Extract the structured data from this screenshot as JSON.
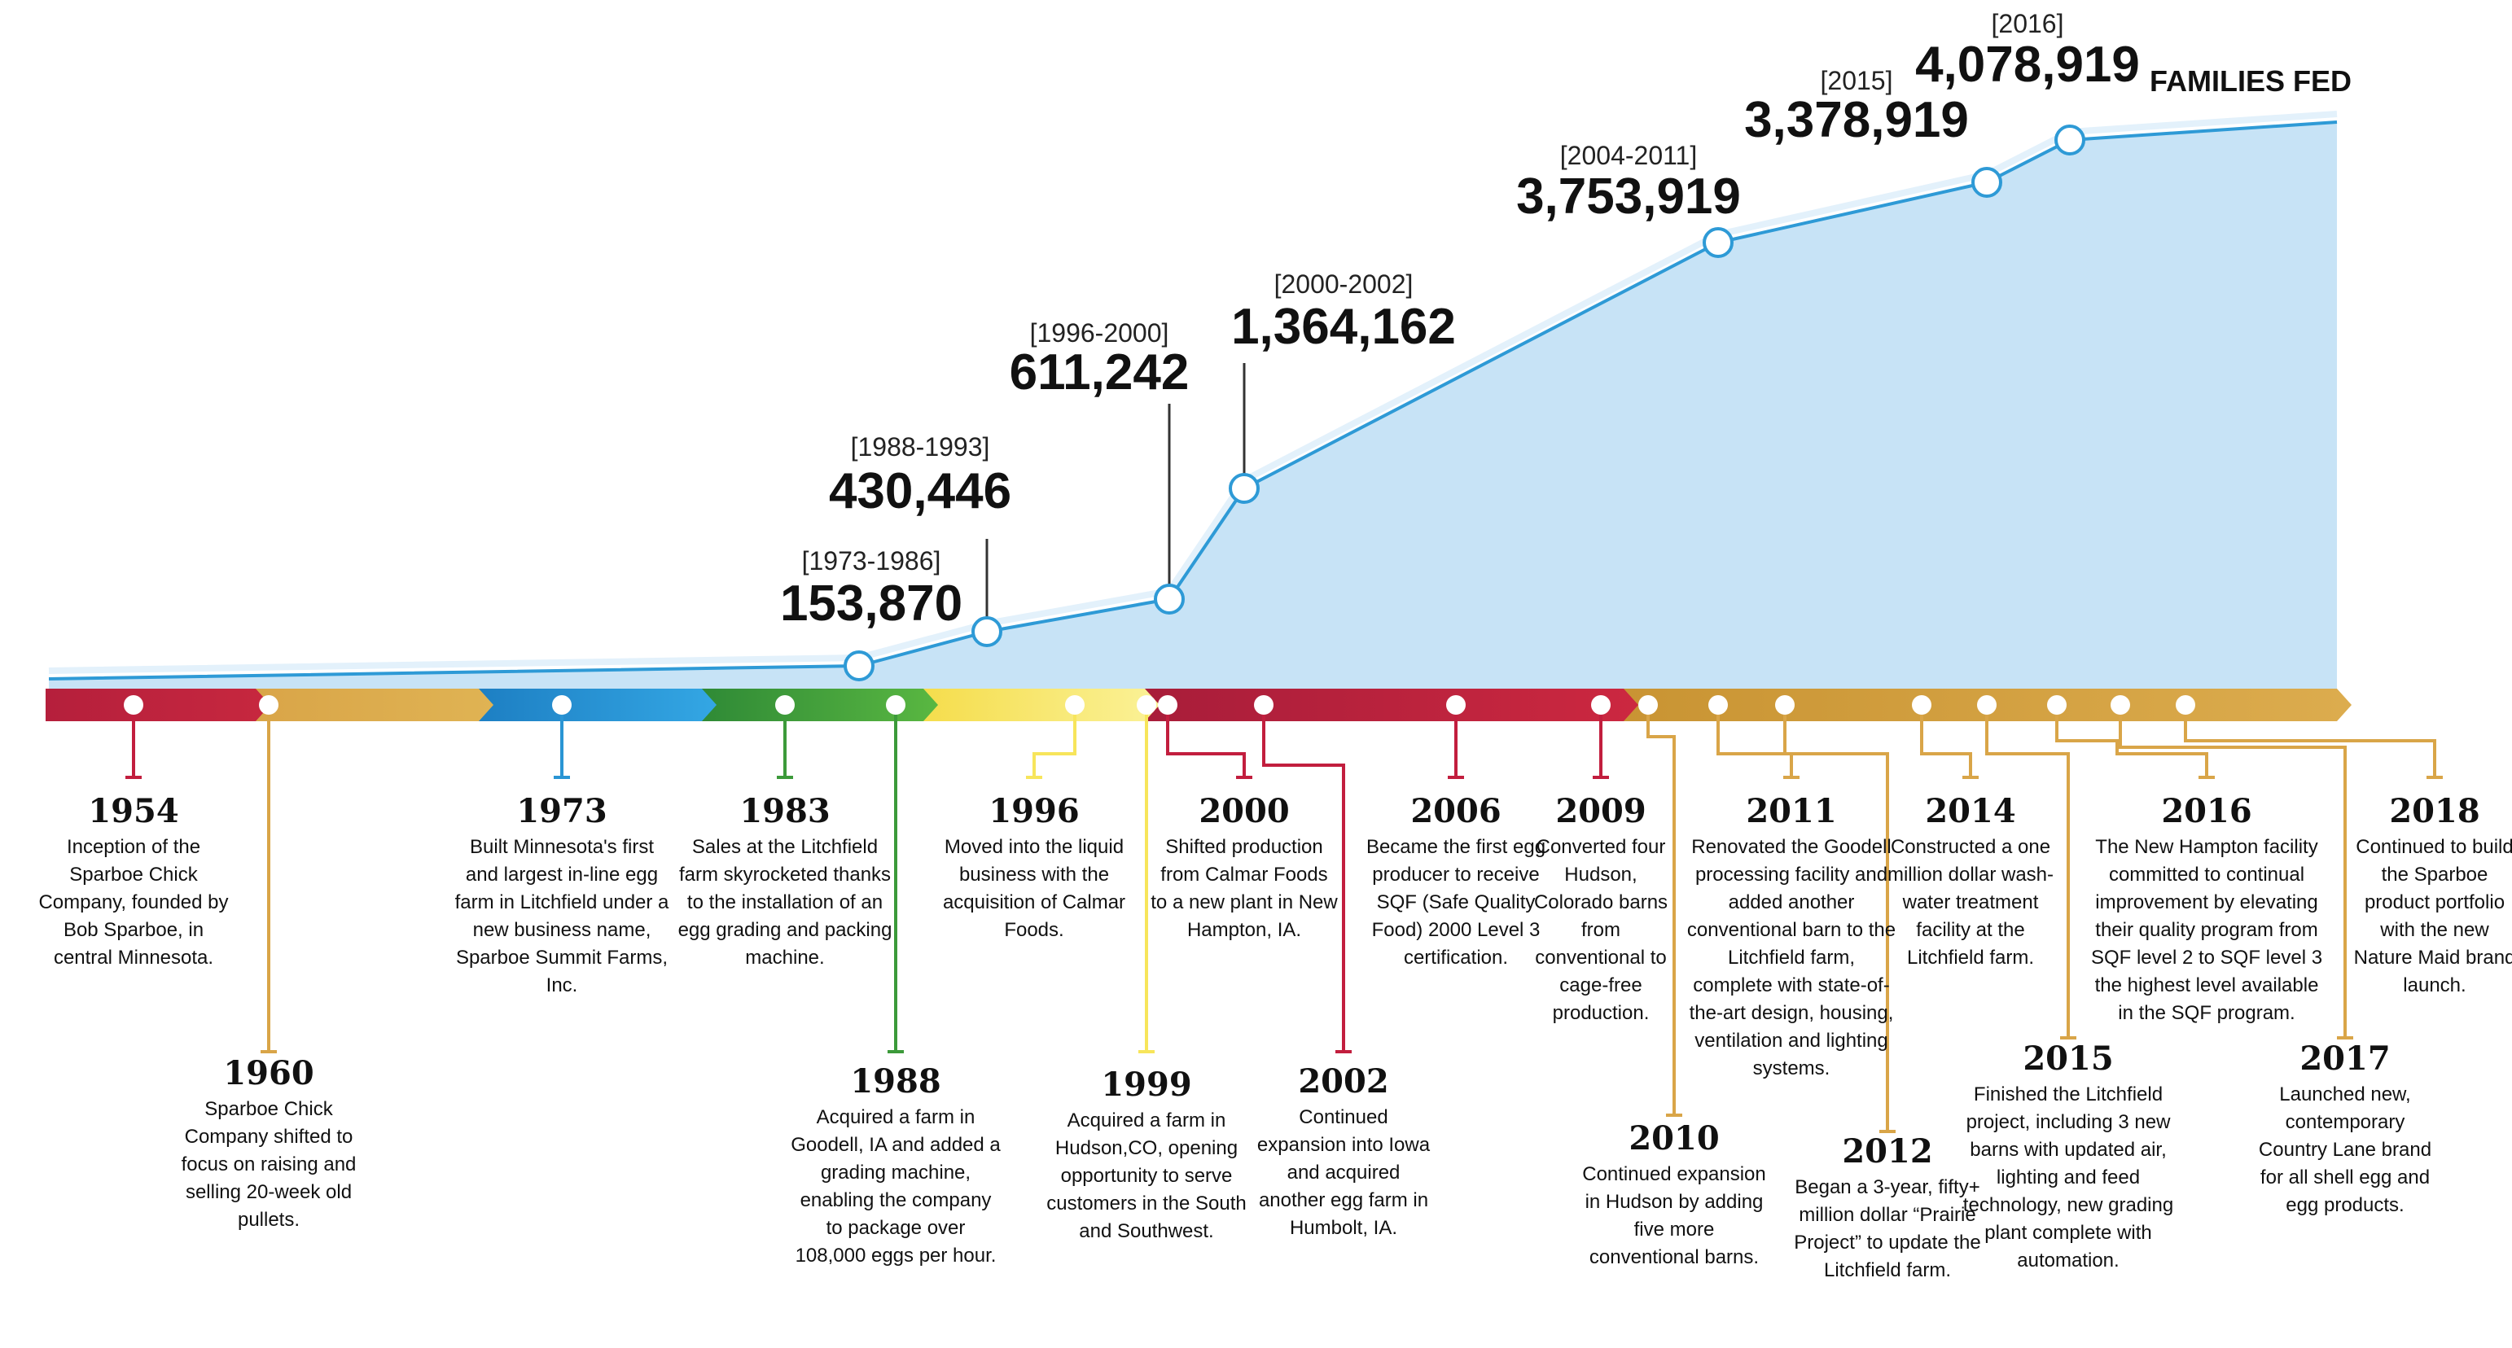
{
  "header": {
    "families_fed_label": "FAMILIES FED"
  },
  "chart_data": {
    "type": "area",
    "series": [
      {
        "name": "FAMILIES FED",
        "values": [
          153870,
          430446,
          611242,
          1364162,
          3753919,
          3378919,
          4078919
        ]
      }
    ],
    "milestones": [
      {
        "period": "[1973-1986]",
        "value": "153,870"
      },
      {
        "period": "[1988-1993]",
        "value": "430,446"
      },
      {
        "period": "[1996-2000]",
        "value": "611,242"
      },
      {
        "period": "[2000-2002]",
        "value": "1,364,162"
      },
      {
        "period": "[2004-2011]",
        "value": "3,753,919"
      },
      {
        "period": "[2015]",
        "value": "3,378,919"
      },
      {
        "period": "[2016]",
        "value": "4,078,919"
      }
    ]
  },
  "colors": {
    "area_fill": "#c7e3f6",
    "line": "#2e9ad6",
    "red": "#c21e3e",
    "gold": "#d9a548",
    "blue": "#2a95d4",
    "green": "#3c9a3a",
    "yellow": "#f7e55b"
  },
  "timeline": {
    "events": [
      {
        "year": "1954",
        "desc": "Inception of the Sparboe Chick Company, founded by Bob Sparboe, in central Minnesota.",
        "color": "red"
      },
      {
        "year": "1960",
        "desc": "Sparboe Chick Company shifted to focus on raising and selling 20-week old pullets.",
        "color": "gold"
      },
      {
        "year": "1973",
        "desc": "Built Minnesota's first and largest in-line egg farm in Litchfield under a new business name, Sparboe Summit Farms, Inc.",
        "color": "blue"
      },
      {
        "year": "1983",
        "desc": "Sales at the Litchfield farm skyrocketed thanks to the installation of an egg grading and packing machine.",
        "color": "green"
      },
      {
        "year": "1988",
        "desc": "Acquired a farm in Goodell, IA and added a grading machine, enabling the company to package over 108,000 eggs per hour.",
        "color": "green"
      },
      {
        "year": "1996",
        "desc": "Moved into the liquid business with the acquisition of Calmar Foods.",
        "color": "yellow"
      },
      {
        "year": "1999",
        "desc": "Acquired a farm in Hudson,CO, opening opportunity to serve customers in the South and Southwest.",
        "color": "yellow"
      },
      {
        "year": "2000",
        "desc": "Shifted production from Calmar Foods to a new plant in New Hampton, IA.",
        "color": "red"
      },
      {
        "year": "2002",
        "desc": "Continued expansion into Iowa and acquired another egg farm in Humbolt, IA.",
        "color": "red"
      },
      {
        "year": "2006",
        "desc": "Became the first egg producer to receive SQF (Safe Quality Food) 2000 Level 3 certification.",
        "color": "red"
      },
      {
        "year": "2009",
        "desc": "Converted four Hudson, Colorado barns from conventional to cage-free production.",
        "color": "red"
      },
      {
        "year": "2010",
        "desc": "Continued expansion in Hudson by adding five more conventional barns.",
        "color": "gold"
      },
      {
        "year": "2011",
        "desc": "Renovated the Goodell processing facility and added another conventional barn to the Litchfield farm, complete with state-of- the-art design, housing, ventilation and lighting systems.",
        "color": "gold"
      },
      {
        "year": "2012",
        "desc": "Began a 3-year, fifty+ million dollar “Prairie Project” to update the Litchfield farm.",
        "color": "gold"
      },
      {
        "year": "2014",
        "desc": "Constructed a one million dollar wash-water treatment facility at the Litchfield farm.",
        "color": "gold"
      },
      {
        "year": "2015",
        "desc": "Finished the Litchfield project, including 3 new barns with updated air, lighting and feed technology, new grading plant complete with automation.",
        "color": "gold"
      },
      {
        "year": "2016",
        "desc": "The New Hampton facility committed to continual improvement by elevating their quality program from SQF level 2 to SQF level 3 the highest level available in the SQF program.",
        "color": "gold"
      },
      {
        "year": "2017",
        "desc": "Launched new, contemporary Country Lane brand for all shell egg and egg products.",
        "color": "gold"
      },
      {
        "year": "2018",
        "desc": "Continued to build the Sparboe product portfolio with the new Nature Maid brand launch.",
        "color": "gold"
      }
    ]
  }
}
